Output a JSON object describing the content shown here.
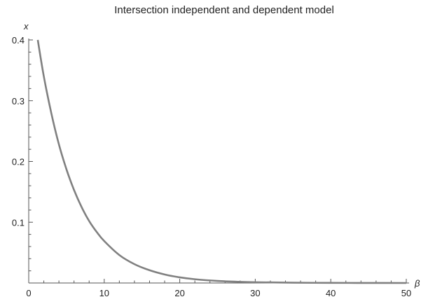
{
  "chart_data": {
    "type": "line",
    "title": "Intersection independent and dependent model",
    "xlabel": "β",
    "ylabel": "x",
    "xlim": [
      0,
      50
    ],
    "ylim": [
      0,
      0.4
    ],
    "x_ticks": [
      0,
      10,
      20,
      30,
      40,
      50
    ],
    "y_ticks": [
      0.1,
      0.2,
      0.3,
      0.4
    ],
    "x_tick_labels": [
      "0",
      "10",
      "20",
      "30",
      "40",
      "50"
    ],
    "y_tick_labels": [
      "0.1",
      "0.2",
      "0.3",
      "0.4"
    ],
    "grid": false,
    "legend": "none",
    "line_color": "#808080",
    "series": [
      {
        "x": [
          1.2,
          2,
          3,
          4,
          5,
          6,
          7,
          8,
          9,
          10,
          12,
          14,
          16,
          18,
          20,
          22,
          25,
          28,
          30,
          35,
          40,
          45,
          50
        ],
        "y": [
          0.4,
          0.34,
          0.279,
          0.228,
          0.187,
          0.153,
          0.125,
          0.102,
          0.084,
          0.069,
          0.046,
          0.031,
          0.021,
          0.014,
          0.0093,
          0.0062,
          0.0034,
          0.0019,
          0.0013,
          0.0005,
          0.0002,
          0.0001,
          0.0
        ]
      }
    ]
  }
}
